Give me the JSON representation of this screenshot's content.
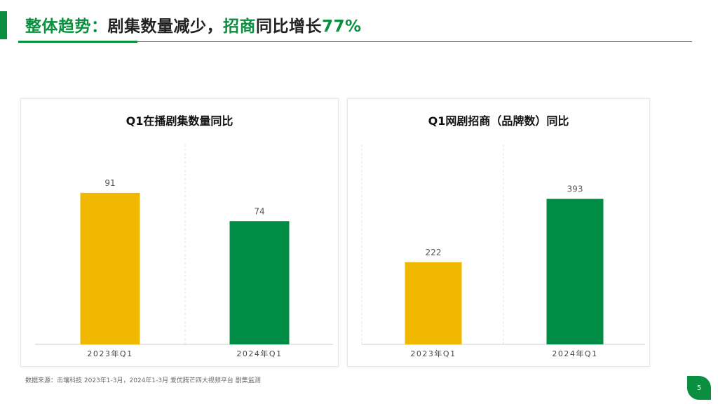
{
  "header": {
    "part1": "整体趋势：",
    "part2": "剧集数量减少，",
    "part3": "招商",
    "part4": "同比增长",
    "part5": "77%"
  },
  "source_note": "数据来源：击壤科技 2023年1-3月，2024年1-3月 爱优腾芒四大视频平台 剧集监测",
  "page_number": "5",
  "colors": {
    "accent": "#0a8f3f",
    "yellow": "#f0b800",
    "green": "#008c45"
  },
  "chart_data": [
    {
      "type": "bar",
      "title": "Q1在播剧集数量同比",
      "categories": [
        "2023年Q1",
        "2024年Q1"
      ],
      "values": [
        91,
        74
      ],
      "ylim": [
        0,
        120
      ],
      "bar_colors": [
        "#f0b800",
        "#008c45"
      ]
    },
    {
      "type": "bar",
      "title": "Q1网剧招商（品牌数）同比",
      "categories": [
        "2023年Q1",
        "2024年Q1"
      ],
      "values": [
        222,
        393
      ],
      "ylim": [
        0,
        540
      ],
      "bar_colors": [
        "#f0b800",
        "#008c45"
      ]
    }
  ]
}
